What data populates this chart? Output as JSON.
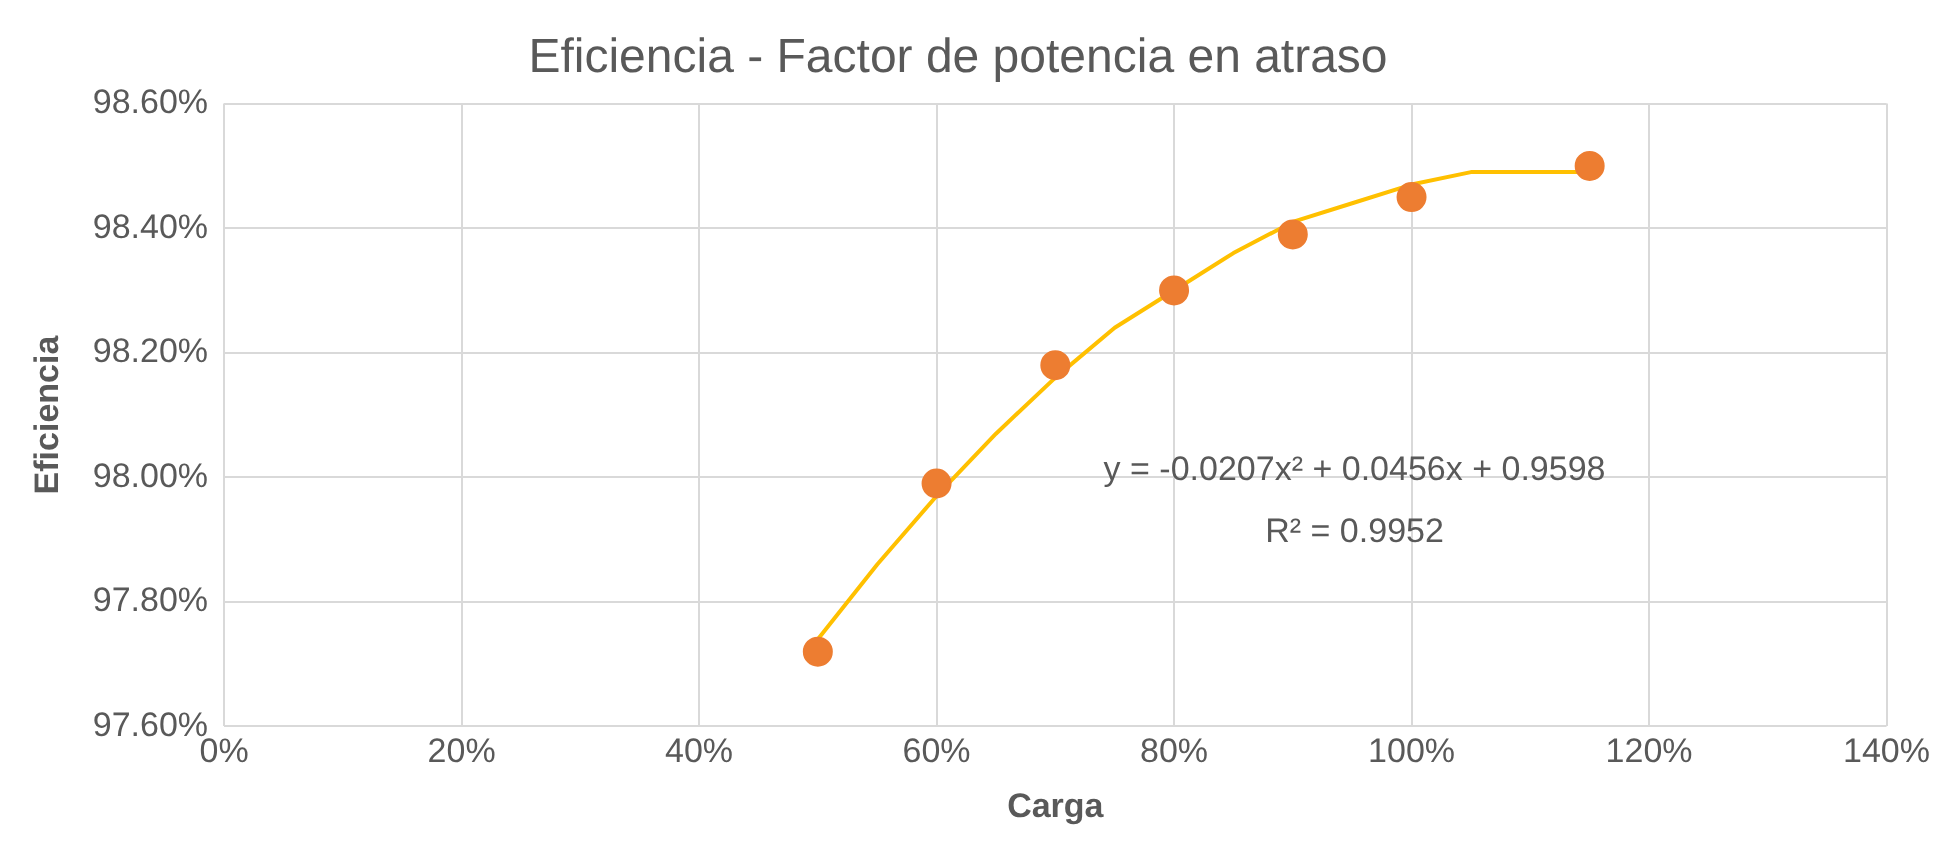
{
  "chart_data": {
    "type": "scatter",
    "title": "Eficiencia - Factor de potencia en atraso",
    "xlabel": "Carga",
    "ylabel": "Eficiencia",
    "series": [
      {
        "color": "#ed7d31",
        "marker": "circle",
        "x": [
          50,
          60,
          70,
          80,
          90,
          100,
          115
        ],
        "values": [
          97.72,
          97.99,
          98.18,
          98.3,
          98.39,
          98.45,
          98.5
        ]
      },
      {
        "type": "line",
        "color": "#ffc000",
        "marker": "none",
        "line_style": "solid",
        "x": [
          50,
          55,
          60,
          65,
          70,
          75,
          80,
          85,
          90,
          95,
          100,
          105,
          110,
          115
        ],
        "values": [
          97.74,
          97.86,
          97.97,
          98.07,
          98.16,
          98.24,
          98.3,
          98.36,
          98.41,
          98.44,
          98.47,
          98.49,
          98.49,
          98.49
        ]
      }
    ],
    "xlim": [
      0,
      140
    ],
    "xticks": [
      {
        "value": 0,
        "label": "0%"
      },
      {
        "value": 20,
        "label": "20%"
      },
      {
        "value": 40,
        "label": "40%"
      },
      {
        "value": 60,
        "label": "60%"
      },
      {
        "value": 80,
        "label": "80%"
      },
      {
        "value": 100,
        "label": "100%"
      },
      {
        "value": 120,
        "label": "120%"
      },
      {
        "value": 140,
        "label": "140%"
      }
    ],
    "ylim": [
      97.6,
      98.6
    ],
    "yticks": [
      {
        "value": 97.6,
        "label": "97.60%"
      },
      {
        "value": 97.8,
        "label": "97.80%"
      },
      {
        "value": 98.0,
        "label": "98.00%"
      },
      {
        "value": 98.2,
        "label": "98.20%"
      },
      {
        "value": 98.4,
        "label": "98.40%"
      },
      {
        "value": 98.6,
        "label": "98.60%"
      }
    ],
    "grid": true,
    "legend": false,
    "annotations": [
      "y = -0.0207x² + 0.0456x + 0.9598",
      "R² = 0.9952"
    ]
  }
}
